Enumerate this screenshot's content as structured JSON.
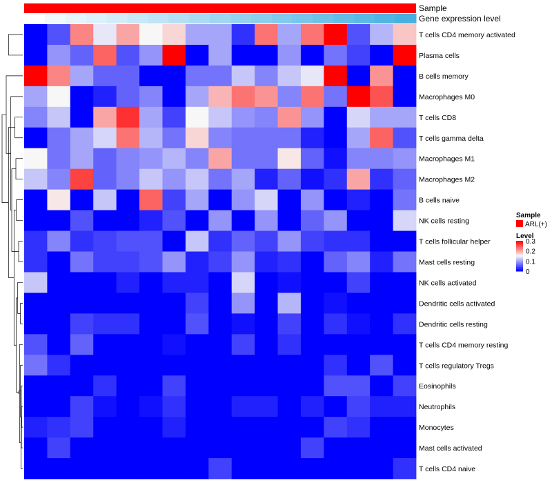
{
  "chart_data": {
    "type": "heatmap",
    "title": "",
    "annotation_tracks": [
      {
        "label": "Sample",
        "color": "#ff0000"
      },
      {
        "label": "Gene expression level",
        "colors": [
          "#ffffff",
          "#f0f9fd",
          "#e6f5fb",
          "#dcf1fa",
          "#d2ecf8",
          "#c8e8f7",
          "#bee4f5",
          "#b4dff4",
          "#aadbf2",
          "#a0d7f0",
          "#96d2ef",
          "#8ccfed",
          "#82caec",
          "#78c6ea",
          "#6ec2e8",
          "#64bde7",
          "#5ab9e5",
          "#50b5e3",
          "#46b0e2"
        ]
      }
    ],
    "rows": [
      "T cells CD4 memory activated",
      "Plasma cells",
      "B cells memory",
      "Macrophages M0",
      "T cells CD8",
      "T cells gamma delta",
      "Macrophages M1",
      "Macrophages M2",
      "B cells naive",
      "NK cells resting",
      "T cells follicular helper",
      "Mast cells resting",
      "NK cells activated",
      "Dendritic cells activated",
      "Dendritic cells resting",
      "T cells CD4 memory resting",
      "T cells regulatory  Tregs",
      "Eosinophils",
      "Neutrophils",
      "Monocytes",
      "Mast cells activated",
      "T cells CD4 naive"
    ],
    "values": [
      [
        0.0,
        0.05,
        0.22,
        0.14,
        0.2,
        0.15,
        0.17,
        0.1,
        0.1,
        0.03,
        0.23,
        0.1,
        0.23,
        0.3,
        0.05,
        0.11,
        0.18
      ],
      [
        0.0,
        0.09,
        0.06,
        0.24,
        0.05,
        0.09,
        0.3,
        0.0,
        0.1,
        0.0,
        0.0,
        0.09,
        0.0,
        0.07,
        0.04,
        0.0,
        0.3
      ],
      [
        0.3,
        0.22,
        0.1,
        0.06,
        0.06,
        0.0,
        0.0,
        0.07,
        0.07,
        0.12,
        0.08,
        0.12,
        0.14,
        0.3,
        0.0,
        0.21,
        0.0
      ],
      [
        0.1,
        0.15,
        0.0,
        0.02,
        0.06,
        0.08,
        0.0,
        0.1,
        0.19,
        0.23,
        0.21,
        0.08,
        0.23,
        0.07,
        0.3,
        0.25,
        0.0
      ],
      [
        0.08,
        0.12,
        0.0,
        0.2,
        0.27,
        0.1,
        0.04,
        0.15,
        0.12,
        0.09,
        0.08,
        0.21,
        0.09,
        0.0,
        0.13,
        0.1,
        0.1
      ],
      [
        0.0,
        0.07,
        0.1,
        0.13,
        0.23,
        0.11,
        0.07,
        0.17,
        0.08,
        0.07,
        0.07,
        0.07,
        0.02,
        0.0,
        0.1,
        0.24,
        0.05
      ],
      [
        0.15,
        0.07,
        0.1,
        0.06,
        0.08,
        0.09,
        0.11,
        0.08,
        0.2,
        0.07,
        0.07,
        0.16,
        0.06,
        0.01,
        0.08,
        0.08,
        0.09
      ],
      [
        0.12,
        0.08,
        0.26,
        0.06,
        0.08,
        0.12,
        0.09,
        0.12,
        0.07,
        0.1,
        0.02,
        0.06,
        0.01,
        0.03,
        0.2,
        0.03,
        0.06
      ],
      [
        0.0,
        0.16,
        0.0,
        0.12,
        0.0,
        0.24,
        0.04,
        0.1,
        0.0,
        0.09,
        0.13,
        0.0,
        0.09,
        0.0,
        0.02,
        0.0,
        0.07
      ],
      [
        0.0,
        0.0,
        0.05,
        0.0,
        0.0,
        0.02,
        0.05,
        0.0,
        0.09,
        0.0,
        0.09,
        0.0,
        0.06,
        0.09,
        0.0,
        0.0,
        0.13
      ],
      [
        0.03,
        0.08,
        0.03,
        0.04,
        0.05,
        0.05,
        0.0,
        0.12,
        0.03,
        0.06,
        0.04,
        0.09,
        0.04,
        0.03,
        0.03,
        0.0,
        0.0
      ],
      [
        0.03,
        0.0,
        0.07,
        0.04,
        0.04,
        0.05,
        0.09,
        0.02,
        0.04,
        0.09,
        0.02,
        0.03,
        0.0,
        0.06,
        0.08,
        0.02,
        0.07
      ],
      [
        0.12,
        0.0,
        0.0,
        0.0,
        0.02,
        0.0,
        0.02,
        0.02,
        0.0,
        0.13,
        0.0,
        0.01,
        0.0,
        0.0,
        0.04,
        0.0,
        0.0
      ],
      [
        0.0,
        0.0,
        0.0,
        0.0,
        0.0,
        0.0,
        0.0,
        0.04,
        0.0,
        0.09,
        0.0,
        0.11,
        0.0,
        0.01,
        0.0,
        0.0,
        0.0
      ],
      [
        0.0,
        0.0,
        0.04,
        0.03,
        0.03,
        0.0,
        0.0,
        0.05,
        0.0,
        0.01,
        0.0,
        0.04,
        0.0,
        0.03,
        0.01,
        0.0,
        0.03
      ],
      [
        0.05,
        0.0,
        0.06,
        0.0,
        0.0,
        0.0,
        0.01,
        0.0,
        0.0,
        0.04,
        0.0,
        0.03,
        0.0,
        0.0,
        0.0,
        0.0,
        0.0
      ],
      [
        0.07,
        0.03,
        0.0,
        0.0,
        0.0,
        0.0,
        0.0,
        0.0,
        0.0,
        0.0,
        0.0,
        0.0,
        0.0,
        0.03,
        0.0,
        0.05,
        0.0
      ],
      [
        0.0,
        0.0,
        0.0,
        0.03,
        0.0,
        0.0,
        0.04,
        0.0,
        0.0,
        0.0,
        0.0,
        0.0,
        0.0,
        0.05,
        0.05,
        0.0,
        0.04
      ],
      [
        0.0,
        0.0,
        0.04,
        0.01,
        0.0,
        0.01,
        0.03,
        0.0,
        0.0,
        0.02,
        0.02,
        0.0,
        0.02,
        0.0,
        0.04,
        0.02,
        0.02
      ],
      [
        0.02,
        0.03,
        0.04,
        0.0,
        0.0,
        0.0,
        0.02,
        0.0,
        0.0,
        0.0,
        0.0,
        0.0,
        0.0,
        0.04,
        0.03,
        0.0,
        0.0
      ],
      [
        0.0,
        0.04,
        0.0,
        0.0,
        0.0,
        0.0,
        0.0,
        0.0,
        0.0,
        0.0,
        0.0,
        0.0,
        0.04,
        0.0,
        0.0,
        0.0,
        0.0
      ],
      [
        0.0,
        0.0,
        0.0,
        0.0,
        0.0,
        0.0,
        0.0,
        0.0,
        0.04,
        0.0,
        0.0,
        0.0,
        0.0,
        0.0,
        0.0,
        0.0,
        0.03
      ]
    ],
    "color_scale": {
      "min": 0,
      "mid": 0.15,
      "max": 0.3,
      "low_color": "#0000ff",
      "mid_color": "#f7f7f7",
      "high_color": "#ff0000"
    },
    "legend": {
      "sample_title": "Sample",
      "sample_entry": "ARL(+)",
      "sample_color": "#ff0000",
      "level_title": "Level",
      "level_ticks": [
        {
          "value": 0.3,
          "label": "0.3"
        },
        {
          "value": 0.2,
          "label": "0.2"
        },
        {
          "value": 0.1,
          "label": "0.1"
        },
        {
          "value": 0,
          "label": "0"
        }
      ]
    },
    "dendrogram": {
      "merges": [
        [
          18,
          19,
          0.05
        ],
        [
          17,
          20,
          0.06
        ],
        [
          21,
          22,
          0.08
        ],
        [
          23,
          16,
          0.1
        ],
        [
          24,
          15,
          0.14
        ],
        [
          13,
          14,
          0.1
        ],
        [
          25,
          26,
          0.18
        ],
        [
          27,
          12,
          0.22
        ],
        [
          10,
          11,
          0.18
        ],
        [
          28,
          29,
          0.28
        ],
        [
          8,
          9,
          0.28
        ],
        [
          6,
          7,
          0.3
        ],
        [
          31,
          32,
          0.38
        ],
        [
          30,
          33,
          0.48
        ],
        [
          4,
          5,
          0.34
        ],
        [
          3,
          35,
          0.52
        ],
        [
          34,
          36,
          0.62
        ],
        [
          2,
          37,
          0.72
        ],
        [
          0,
          1,
          0.62
        ],
        [
          38,
          39,
          0.9
        ],
        [
          0,
          0,
          0
        ]
      ]
    }
  }
}
